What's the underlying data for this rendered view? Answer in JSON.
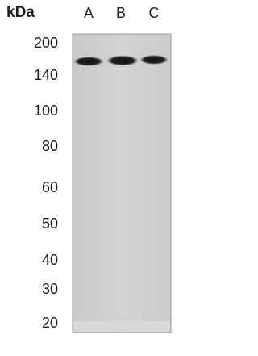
{
  "unit_label": "kDa",
  "lanes": [
    "A",
    "B",
    "C"
  ],
  "markers": [
    "200",
    "140",
    "100",
    "80",
    "60",
    "50",
    "40",
    "30",
    "20"
  ]
}
